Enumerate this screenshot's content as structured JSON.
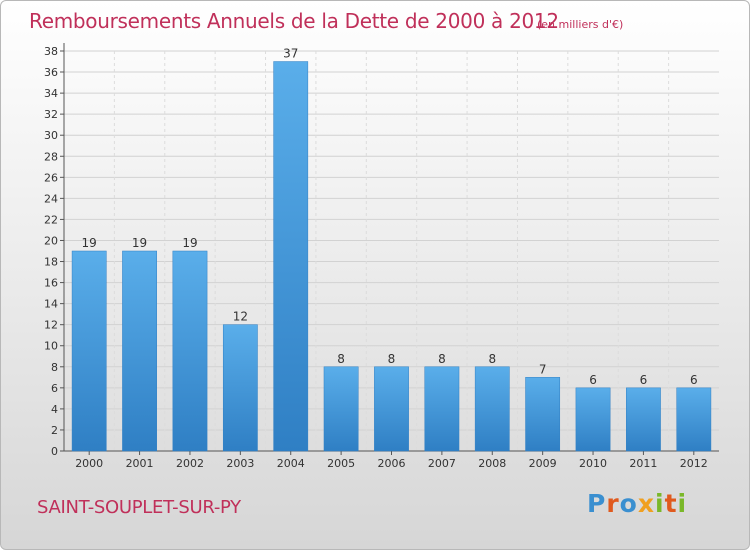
{
  "chart_data": {
    "type": "bar",
    "title": "Remboursements Annuels de la Dette de 2000 à 2012",
    "subtitle": "(en milliers d'€)",
    "categories": [
      "2000",
      "2001",
      "2002",
      "2003",
      "2004",
      "2005",
      "2006",
      "2007",
      "2008",
      "2009",
      "2010",
      "2011",
      "2012"
    ],
    "values": [
      19,
      19,
      19,
      12,
      37,
      8,
      8,
      8,
      8,
      7,
      6,
      6,
      6
    ],
    "ylim": [
      0,
      38
    ],
    "yticks": [
      0,
      2,
      4,
      6,
      8,
      10,
      12,
      14,
      16,
      18,
      20,
      22,
      24,
      26,
      28,
      30,
      32,
      34,
      36,
      38
    ],
    "grid": true,
    "bar_color": "#4a9de0",
    "xlabel": "",
    "ylabel": ""
  },
  "footer": {
    "town": "SAINT-SOUPLET-SUR-PY",
    "logo": "Proxiti"
  },
  "colors": {
    "title": "#c0305a",
    "bar": "#4a9de0"
  }
}
